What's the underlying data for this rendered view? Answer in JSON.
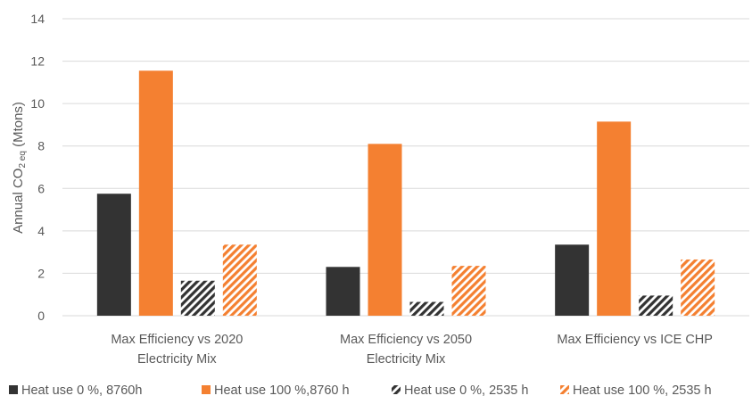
{
  "chart_data": {
    "type": "bar",
    "categories": [
      [
        "Max Efficiency vs 2020",
        "Electricity Mix"
      ],
      [
        "Max Efficiency vs 2050",
        "Electricity Mix"
      ],
      [
        "Max Efficiency vs ICE CHP"
      ]
    ],
    "series": [
      {
        "name": "Heat use 0 %, 8760h",
        "values": [
          5.75,
          2.3,
          3.35
        ],
        "color": "#333333",
        "pattern": "solid"
      },
      {
        "name": "Heat use 100 %,8760 h",
        "values": [
          11.55,
          8.1,
          9.15
        ],
        "color": "#f48031",
        "pattern": "solid"
      },
      {
        "name": "Heat use 0 %, 2535 h",
        "values": [
          1.65,
          0.65,
          0.95
        ],
        "color": "#333333",
        "pattern": "hatch"
      },
      {
        "name": "Heat use 100 %, 2535 h",
        "values": [
          3.35,
          2.35,
          2.65
        ],
        "color": "#f48031",
        "pattern": "hatch"
      }
    ],
    "ylabel_main": "Annual CO",
    "ylabel_sub": "2 eq",
    "ylabel_unit": " (Mtons)",
    "ylim": [
      0,
      14
    ],
    "yticks": [
      "0",
      "2",
      "4",
      "6",
      "8",
      "10",
      "12",
      "14"
    ],
    "grid": true,
    "legend_position": "bottom"
  }
}
